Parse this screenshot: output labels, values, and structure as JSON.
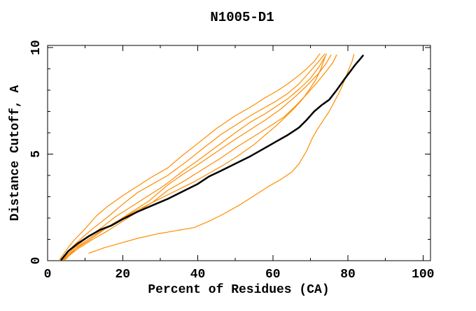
{
  "window": {
    "background": "#ffffff"
  },
  "chart_data": {
    "type": "line",
    "title": "N1005-D1",
    "xlabel": "Percent of Residues (CA)",
    "ylabel": "Distance Cutoff, A",
    "xlim": [
      0,
      102
    ],
    "ylim": [
      0,
      10.1
    ],
    "grid": false,
    "legend": "none",
    "axis_color": "#000000",
    "model_color": "#ff8c00",
    "reference_color": "#000000",
    "xticks": {
      "major": [
        0,
        20,
        40,
        60,
        80,
        100
      ],
      "labels": [
        "0",
        "20",
        "40",
        "60",
        "80",
        "100"
      ],
      "minor": [
        10,
        30,
        50,
        70,
        90
      ]
    },
    "yticks": {
      "major": [
        0,
        5,
        10
      ],
      "labels": [
        "0",
        "5",
        "10"
      ],
      "minor": [
        1,
        2,
        3,
        4,
        6,
        7,
        8,
        9
      ],
      "rotated": true
    },
    "series": [
      {
        "name": "model-1",
        "color": "#ff8c00",
        "width": 1.2,
        "points": [
          [
            3.2,
            0.05
          ],
          [
            5,
            0.5
          ],
          [
            7,
            0.95
          ],
          [
            10,
            1.5
          ],
          [
            13,
            2.1
          ],
          [
            16,
            2.55
          ],
          [
            20,
            3.05
          ],
          [
            24,
            3.5
          ],
          [
            28,
            3.95
          ],
          [
            32,
            4.35
          ],
          [
            36,
            4.95
          ],
          [
            40,
            5.5
          ],
          [
            45,
            6.2
          ],
          [
            50,
            6.8
          ],
          [
            54,
            7.2
          ],
          [
            58,
            7.65
          ],
          [
            61,
            7.95
          ],
          [
            64,
            8.3
          ],
          [
            67,
            8.7
          ],
          [
            69,
            9.0
          ],
          [
            71,
            9.35
          ],
          [
            72.5,
            9.7
          ]
        ]
      },
      {
        "name": "model-2",
        "color": "#ff8c00",
        "width": 1.2,
        "points": [
          [
            3.5,
            0.05
          ],
          [
            6,
            0.55
          ],
          [
            9,
            1.05
          ],
          [
            12,
            1.5
          ],
          [
            16,
            2.05
          ],
          [
            20,
            2.65
          ],
          [
            24,
            3.2
          ],
          [
            28,
            3.6
          ],
          [
            32,
            4.0
          ],
          [
            37,
            4.65
          ],
          [
            42,
            5.35
          ],
          [
            46,
            5.9
          ],
          [
            50,
            6.35
          ],
          [
            54,
            6.8
          ],
          [
            58,
            7.2
          ],
          [
            61,
            7.5
          ],
          [
            64,
            7.85
          ],
          [
            67,
            8.3
          ],
          [
            70,
            8.9
          ],
          [
            72,
            9.3
          ],
          [
            73.8,
            9.7
          ]
        ]
      },
      {
        "name": "model-3",
        "color": "#ff8c00",
        "width": 1.2,
        "points": [
          [
            3.8,
            0.05
          ],
          [
            6.5,
            0.5
          ],
          [
            10,
            1.0
          ],
          [
            14,
            1.5
          ],
          [
            18,
            2.05
          ],
          [
            22,
            2.5
          ],
          [
            26,
            2.95
          ],
          [
            30,
            3.4
          ],
          [
            32,
            3.65
          ],
          [
            36,
            4.2
          ],
          [
            40,
            4.7
          ],
          [
            45,
            5.35
          ],
          [
            50,
            6.0
          ],
          [
            54,
            6.5
          ],
          [
            58,
            6.9
          ],
          [
            61,
            7.25
          ],
          [
            64,
            7.6
          ],
          [
            67,
            8.05
          ],
          [
            70,
            8.55
          ],
          [
            72.5,
            9.15
          ],
          [
            74.3,
            9.7
          ]
        ]
      },
      {
        "name": "model-4",
        "color": "#ff8c00",
        "width": 1.2,
        "points": [
          [
            4.1,
            0.05
          ],
          [
            7,
            0.5
          ],
          [
            11,
            0.95
          ],
          [
            15,
            1.45
          ],
          [
            19,
            1.9
          ],
          [
            23,
            2.35
          ],
          [
            27,
            2.8
          ],
          [
            32,
            3.55
          ],
          [
            36,
            4.05
          ],
          [
            40,
            4.5
          ],
          [
            45,
            5.1
          ],
          [
            50,
            5.7
          ],
          [
            54,
            6.15
          ],
          [
            58,
            6.6
          ],
          [
            62,
            7.1
          ],
          [
            66,
            7.7
          ],
          [
            69,
            8.2
          ],
          [
            72,
            8.75
          ],
          [
            74,
            9.2
          ],
          [
            75.5,
            9.65
          ]
        ]
      },
      {
        "name": "model-5",
        "color": "#ff8c00",
        "width": 1.2,
        "points": [
          [
            4.4,
            0.05
          ],
          [
            8,
            0.55
          ],
          [
            12,
            1.0
          ],
          [
            16,
            1.4
          ],
          [
            20,
            1.85
          ],
          [
            24,
            2.3
          ],
          [
            28,
            2.75
          ],
          [
            32,
            3.3
          ],
          [
            36,
            3.7
          ],
          [
            41,
            4.25
          ],
          [
            46,
            4.8
          ],
          [
            51,
            5.4
          ],
          [
            56,
            5.95
          ],
          [
            60,
            6.4
          ],
          [
            63,
            6.75
          ],
          [
            66,
            7.25
          ],
          [
            69,
            7.8
          ],
          [
            72,
            8.4
          ],
          [
            74.5,
            8.95
          ],
          [
            76,
            9.3
          ],
          [
            77,
            9.65
          ]
        ]
      },
      {
        "name": "model-6",
        "color": "#ff8c00",
        "width": 1.2,
        "points": [
          [
            4.7,
            0.05
          ],
          [
            8,
            0.65
          ],
          [
            12,
            1.15
          ],
          [
            17,
            1.7
          ],
          [
            22,
            2.2
          ],
          [
            27,
            2.65
          ],
          [
            31,
            3.0
          ],
          [
            35,
            3.35
          ],
          [
            39,
            3.7
          ],
          [
            43,
            4.1
          ],
          [
            47,
            4.5
          ],
          [
            51,
            4.95
          ],
          [
            55,
            5.45
          ],
          [
            58,
            5.9
          ],
          [
            61,
            6.35
          ],
          [
            64,
            6.85
          ],
          [
            66,
            7.2
          ],
          [
            68,
            7.6
          ],
          [
            70,
            8.1
          ],
          [
            71.5,
            8.5
          ],
          [
            72.8,
            9.0
          ],
          [
            73.6,
            9.4
          ],
          [
            74,
            9.6
          ]
        ]
      },
      {
        "name": "model-outlier",
        "color": "#ff8c00",
        "width": 1.2,
        "points": [
          [
            11,
            0.35
          ],
          [
            15,
            0.6
          ],
          [
            19,
            0.8
          ],
          [
            24,
            1.05
          ],
          [
            29,
            1.25
          ],
          [
            34,
            1.4
          ],
          [
            39,
            1.55
          ],
          [
            43,
            1.85
          ],
          [
            47,
            2.2
          ],
          [
            51,
            2.6
          ],
          [
            55,
            3.05
          ],
          [
            59,
            3.5
          ],
          [
            62,
            3.8
          ],
          [
            65,
            4.15
          ],
          [
            67,
            4.55
          ],
          [
            69,
            5.15
          ],
          [
            70.5,
            5.75
          ],
          [
            72,
            6.2
          ],
          [
            73.5,
            6.6
          ],
          [
            75,
            7.0
          ],
          [
            76.5,
            7.5
          ],
          [
            78,
            8.0
          ],
          [
            79.3,
            8.55
          ],
          [
            80.3,
            9.0
          ],
          [
            81.2,
            9.4
          ],
          [
            81.6,
            9.68
          ]
        ]
      },
      {
        "name": "reference-black",
        "color": "#000000",
        "width": 2.5,
        "points": [
          [
            3.7,
            0.05
          ],
          [
            5.5,
            0.45
          ],
          [
            8,
            0.8
          ],
          [
            11,
            1.15
          ],
          [
            14,
            1.45
          ],
          [
            17,
            1.65
          ],
          [
            20,
            1.95
          ],
          [
            24,
            2.3
          ],
          [
            28,
            2.6
          ],
          [
            32,
            2.9
          ],
          [
            36,
            3.25
          ],
          [
            40,
            3.6
          ],
          [
            43,
            3.95
          ],
          [
            46,
            4.2
          ],
          [
            50,
            4.55
          ],
          [
            54,
            4.9
          ],
          [
            58,
            5.3
          ],
          [
            61,
            5.6
          ],
          [
            64,
            5.9
          ],
          [
            67,
            6.25
          ],
          [
            69,
            6.6
          ],
          [
            71,
            7.0
          ],
          [
            73,
            7.3
          ],
          [
            75,
            7.55
          ],
          [
            77,
            8.0
          ],
          [
            79,
            8.5
          ],
          [
            80.5,
            8.85
          ],
          [
            82,
            9.2
          ],
          [
            83.2,
            9.45
          ],
          [
            84,
            9.62
          ]
        ]
      }
    ]
  }
}
